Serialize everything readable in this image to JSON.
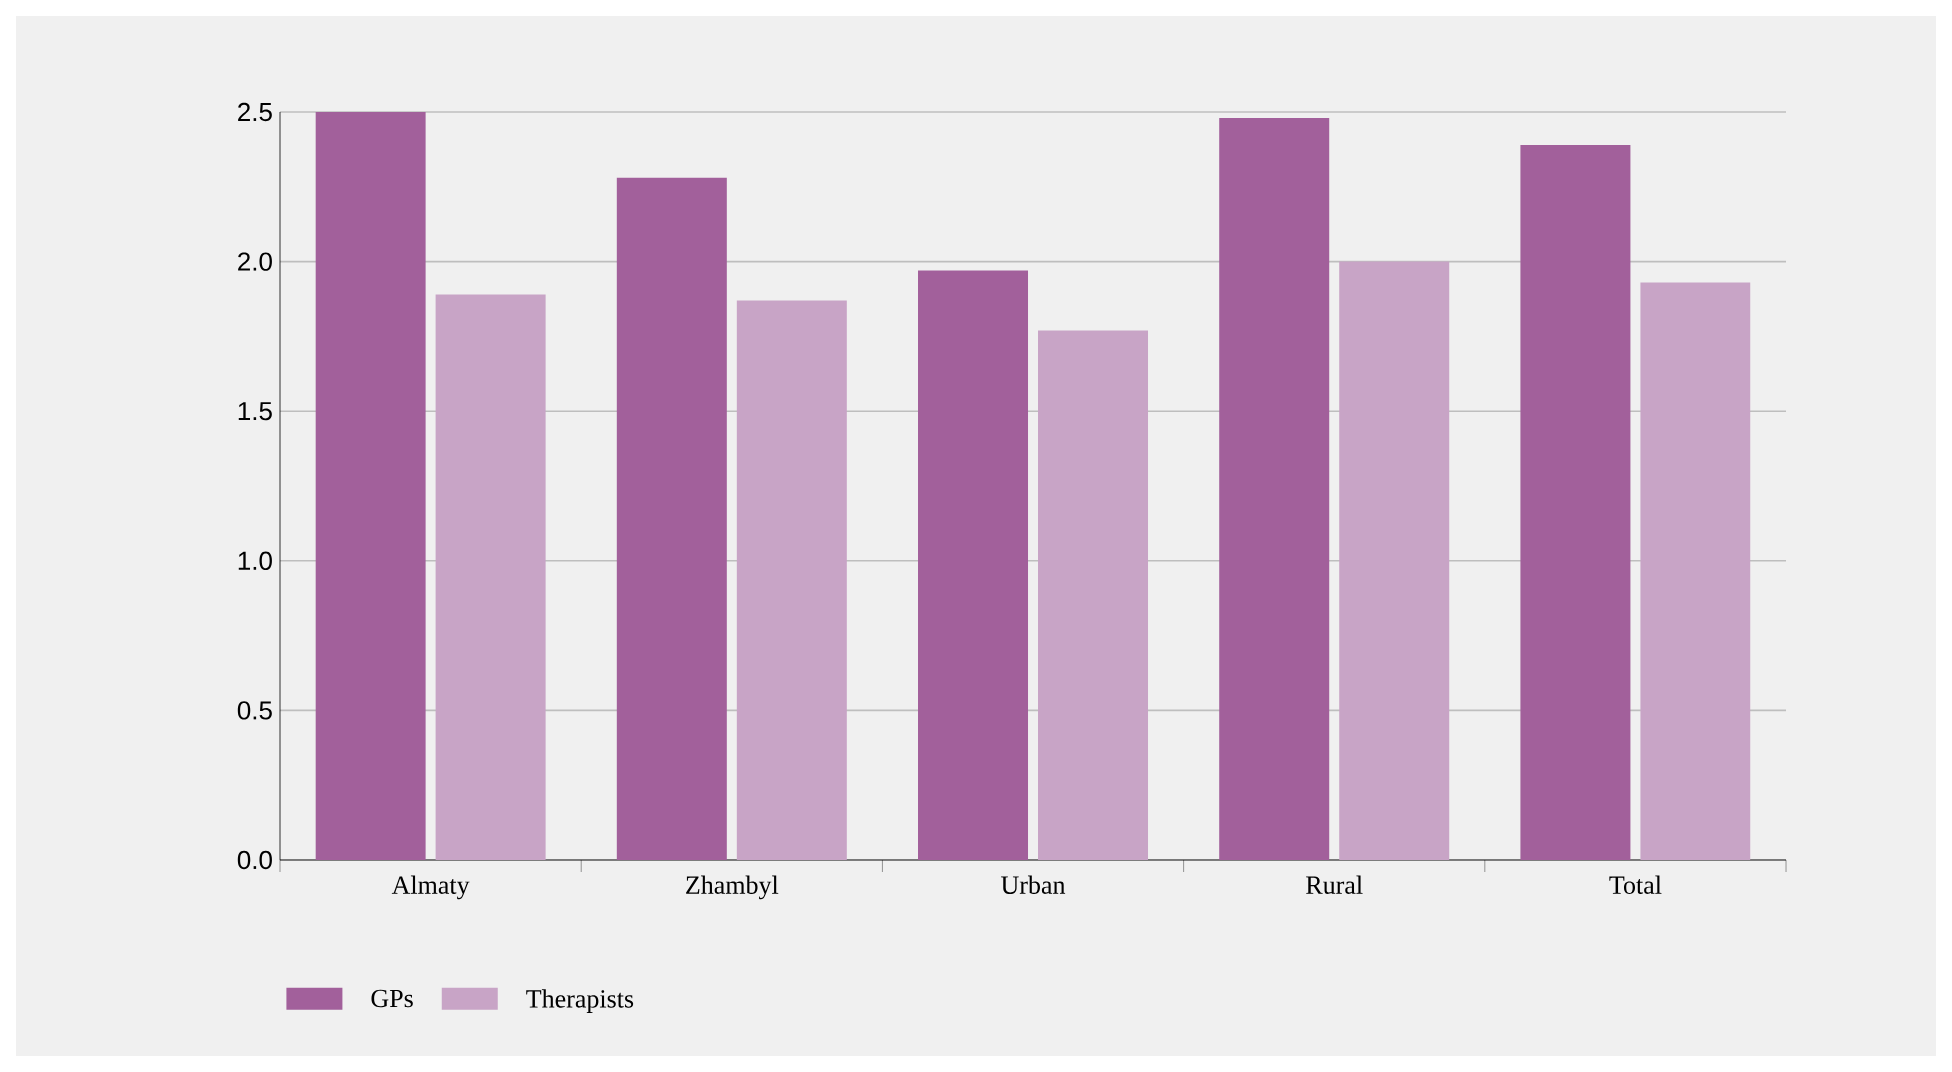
{
  "chart_data": {
    "type": "bar",
    "categories": [
      "Almaty",
      "Zhambyl",
      "Urban",
      "Rural",
      "Total"
    ],
    "series": [
      {
        "name": "GPs",
        "color": "#a2609b",
        "values": [
          2.5,
          2.28,
          1.97,
          2.48,
          2.39
        ]
      },
      {
        "name": "Therapists",
        "color": "#c8a4c6",
        "values": [
          1.89,
          1.87,
          1.77,
          2.0,
          1.93
        ]
      }
    ],
    "ylim": [
      0,
      2.5
    ],
    "yticks": [
      {
        "value": 0,
        "label": "0.0"
      },
      {
        "value": 0.5,
        "label": "0.5"
      },
      {
        "value": 1,
        "label": "1.0"
      },
      {
        "value": 1.5,
        "label": "1.5"
      },
      {
        "value": 2,
        "label": "2.0"
      },
      {
        "value": 2.5,
        "label": "2.5"
      }
    ],
    "grid": "y",
    "legend": "bottom"
  }
}
